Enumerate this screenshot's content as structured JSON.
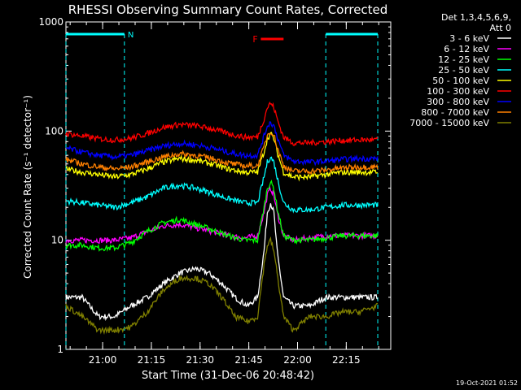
{
  "chart_data": {
    "type": "line",
    "title": "RHESSI Observing Summary Count Rates, Corrected",
    "ylabel": "Corrected Count Rate (s⁻¹ detector⁻¹)",
    "xlabel": "Start Time (31-Dec-06 20:48:42)",
    "y_scale": "log",
    "ylim": [
      1,
      1000
    ],
    "xlim_minutes": [
      0,
      100
    ],
    "x_ticks": [
      {
        "minute": 11.3,
        "label": "21:00"
      },
      {
        "minute": 26.3,
        "label": "21:15"
      },
      {
        "minute": 41.3,
        "label": "21:30"
      },
      {
        "minute": 56.3,
        "label": "21:45"
      },
      {
        "minute": 71.3,
        "label": "22:00"
      },
      {
        "minute": 86.3,
        "label": "22:15"
      }
    ],
    "y_ticks": [
      {
        "value": 1,
        "label": "1"
      },
      {
        "value": 10,
        "label": "10"
      },
      {
        "value": 100,
        "label": "100"
      },
      {
        "value": 1000,
        "label": "1000"
      }
    ],
    "legend_header": [
      "Det 1,3,4,5,6,9,",
      "Att 0"
    ],
    "series": [
      {
        "name": "3 - 6 keV",
        "color": "#ffffff",
        "values": [
          [
            0,
            3
          ],
          [
            5,
            3
          ],
          [
            10,
            2
          ],
          [
            15,
            2
          ],
          [
            20,
            2.5
          ],
          [
            25,
            3
          ],
          [
            30,
            4
          ],
          [
            35,
            5
          ],
          [
            40,
            5.5
          ],
          [
            44,
            5
          ],
          [
            48,
            4
          ],
          [
            52,
            3
          ],
          [
            56,
            2.5
          ],
          [
            59,
            3
          ],
          [
            61,
            8
          ],
          [
            62,
            18
          ],
          [
            63,
            22
          ],
          [
            64,
            18
          ],
          [
            65,
            8
          ],
          [
            67,
            3
          ],
          [
            70,
            2.5
          ],
          [
            75,
            2.5
          ],
          [
            80,
            3
          ],
          [
            85,
            3
          ],
          [
            90,
            3
          ],
          [
            96,
            3
          ]
        ]
      },
      {
        "name": "6 - 12 keV",
        "color": "#ff00ff",
        "values": [
          [
            0,
            10
          ],
          [
            5,
            10
          ],
          [
            10,
            10
          ],
          [
            15,
            10
          ],
          [
            20,
            10.5
          ],
          [
            25,
            12
          ],
          [
            30,
            13.5
          ],
          [
            35,
            14
          ],
          [
            40,
            13
          ],
          [
            45,
            12
          ],
          [
            50,
            11
          ],
          [
            55,
            10.5
          ],
          [
            59,
            11
          ],
          [
            61,
            18
          ],
          [
            62,
            26
          ],
          [
            63,
            30
          ],
          [
            64,
            26
          ],
          [
            65,
            18
          ],
          [
            67,
            11
          ],
          [
            70,
            10
          ],
          [
            75,
            10.5
          ],
          [
            80,
            11
          ],
          [
            85,
            11
          ],
          [
            90,
            11
          ],
          [
            96,
            11
          ]
        ]
      },
      {
        "name": "12 - 25 keV",
        "color": "#00ff00",
        "values": [
          [
            0,
            9
          ],
          [
            5,
            9
          ],
          [
            10,
            8.5
          ],
          [
            15,
            8.5
          ],
          [
            20,
            9.5
          ],
          [
            25,
            12
          ],
          [
            30,
            14.5
          ],
          [
            35,
            15.5
          ],
          [
            40,
            14
          ],
          [
            45,
            12.5
          ],
          [
            50,
            11
          ],
          [
            55,
            10
          ],
          [
            59,
            10
          ],
          [
            61,
            20
          ],
          [
            62,
            30
          ],
          [
            63,
            34
          ],
          [
            64,
            30
          ],
          [
            65,
            20
          ],
          [
            67,
            11
          ],
          [
            70,
            10
          ],
          [
            75,
            10
          ],
          [
            80,
            10.5
          ],
          [
            85,
            11
          ],
          [
            90,
            11
          ],
          [
            96,
            11
          ]
        ]
      },
      {
        "name": "25 - 50 keV",
        "color": "#00ffff",
        "values": [
          [
            0,
            23
          ],
          [
            5,
            22
          ],
          [
            10,
            21
          ],
          [
            15,
            20
          ],
          [
            20,
            22
          ],
          [
            25,
            25
          ],
          [
            30,
            30
          ],
          [
            35,
            32
          ],
          [
            40,
            30
          ],
          [
            45,
            27
          ],
          [
            50,
            24
          ],
          [
            55,
            22
          ],
          [
            59,
            22
          ],
          [
            61,
            38
          ],
          [
            62,
            52
          ],
          [
            63,
            58
          ],
          [
            64,
            52
          ],
          [
            65,
            38
          ],
          [
            67,
            22
          ],
          [
            70,
            19
          ],
          [
            75,
            19
          ],
          [
            80,
            20
          ],
          [
            85,
            21
          ],
          [
            90,
            21
          ],
          [
            96,
            21
          ]
        ]
      },
      {
        "name": "50 - 100 keV",
        "color": "#ffff00",
        "values": [
          [
            0,
            45
          ],
          [
            5,
            42
          ],
          [
            10,
            40
          ],
          [
            15,
            38
          ],
          [
            20,
            40
          ],
          [
            25,
            45
          ],
          [
            30,
            52
          ],
          [
            35,
            56
          ],
          [
            40,
            54
          ],
          [
            45,
            50
          ],
          [
            50,
            45
          ],
          [
            55,
            42
          ],
          [
            59,
            42
          ],
          [
            61,
            65
          ],
          [
            62,
            85
          ],
          [
            63,
            95
          ],
          [
            64,
            85
          ],
          [
            65,
            65
          ],
          [
            67,
            42
          ],
          [
            70,
            38
          ],
          [
            75,
            38
          ],
          [
            80,
            40
          ],
          [
            85,
            42
          ],
          [
            90,
            42
          ],
          [
            96,
            42
          ]
        ]
      },
      {
        "name": "100 - 300 keV",
        "color": "#ff0000",
        "values": [
          [
            0,
            95
          ],
          [
            5,
            90
          ],
          [
            10,
            85
          ],
          [
            15,
            83
          ],
          [
            20,
            86
          ],
          [
            25,
            95
          ],
          [
            30,
            108
          ],
          [
            35,
            115
          ],
          [
            40,
            112
          ],
          [
            45,
            105
          ],
          [
            50,
            95
          ],
          [
            55,
            88
          ],
          [
            59,
            88
          ],
          [
            61,
            130
          ],
          [
            62,
            165
          ],
          [
            63,
            180
          ],
          [
            64,
            165
          ],
          [
            65,
            130
          ],
          [
            67,
            88
          ],
          [
            70,
            78
          ],
          [
            75,
            78
          ],
          [
            80,
            80
          ],
          [
            85,
            82
          ],
          [
            90,
            83
          ],
          [
            96,
            83
          ]
        ]
      },
      {
        "name": "300 - 800 keV",
        "color": "#0000ff",
        "values": [
          [
            0,
            70
          ],
          [
            5,
            64
          ],
          [
            10,
            60
          ],
          [
            15,
            58
          ],
          [
            20,
            60
          ],
          [
            25,
            66
          ],
          [
            30,
            73
          ],
          [
            35,
            77
          ],
          [
            40,
            75
          ],
          [
            45,
            70
          ],
          [
            50,
            64
          ],
          [
            55,
            60
          ],
          [
            59,
            60
          ],
          [
            61,
            90
          ],
          [
            62,
            112
          ],
          [
            63,
            120
          ],
          [
            64,
            112
          ],
          [
            65,
            90
          ],
          [
            67,
            60
          ],
          [
            70,
            53
          ],
          [
            75,
            52
          ],
          [
            80,
            53
          ],
          [
            85,
            55
          ],
          [
            90,
            56
          ],
          [
            96,
            56
          ]
        ]
      },
      {
        "name": "800 - 7000 keV",
        "color": "#ff8000",
        "values": [
          [
            0,
            55
          ],
          [
            5,
            50
          ],
          [
            10,
            47
          ],
          [
            15,
            45
          ],
          [
            20,
            47
          ],
          [
            25,
            52
          ],
          [
            30,
            58
          ],
          [
            35,
            62
          ],
          [
            40,
            60
          ],
          [
            45,
            56
          ],
          [
            50,
            51
          ],
          [
            55,
            48
          ],
          [
            59,
            48
          ],
          [
            61,
            72
          ],
          [
            62,
            92
          ],
          [
            63,
            100
          ],
          [
            64,
            92
          ],
          [
            65,
            72
          ],
          [
            67,
            48
          ],
          [
            70,
            43
          ],
          [
            75,
            43
          ],
          [
            80,
            44
          ],
          [
            85,
            46
          ],
          [
            90,
            47
          ],
          [
            96,
            47
          ]
        ]
      },
      {
        "name": "7000 - 15000 keV",
        "color": "#808000",
        "values": [
          [
            0,
            2.5
          ],
          [
            5,
            2
          ],
          [
            10,
            1.5
          ],
          [
            15,
            1.5
          ],
          [
            20,
            1.6
          ],
          [
            25,
            2.2
          ],
          [
            30,
            3.5
          ],
          [
            35,
            4.5
          ],
          [
            40,
            4.5
          ],
          [
            44,
            4
          ],
          [
            48,
            3
          ],
          [
            52,
            2
          ],
          [
            56,
            1.8
          ],
          [
            59,
            2
          ],
          [
            61,
            6
          ],
          [
            62,
            9
          ],
          [
            63,
            10
          ],
          [
            64,
            8
          ],
          [
            65,
            5
          ],
          [
            67,
            2
          ],
          [
            70,
            1.5
          ],
          [
            75,
            2
          ],
          [
            80,
            2
          ],
          [
            85,
            2.2
          ],
          [
            90,
            2.2
          ],
          [
            96,
            2.5
          ]
        ]
      }
    ],
    "night_markers": [
      {
        "minute_start": 0,
        "minute_end": 18,
        "label": "N"
      },
      {
        "minute_start": 80,
        "minute_end": 96,
        "label": ""
      }
    ],
    "flare_marker": {
      "minute_start": 60,
      "minute_end": 67,
      "label": "F"
    },
    "timestamp": "19-Oct-2021 01:52"
  }
}
